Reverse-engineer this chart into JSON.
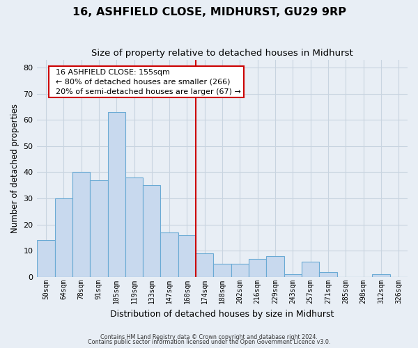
{
  "title": "16, ASHFIELD CLOSE, MIDHURST, GU29 9RP",
  "subtitle": "Size of property relative to detached houses in Midhurst",
  "xlabel": "Distribution of detached houses by size in Midhurst",
  "ylabel": "Number of detached properties",
  "bar_labels": [
    "50sqm",
    "64sqm",
    "78sqm",
    "91sqm",
    "105sqm",
    "119sqm",
    "133sqm",
    "147sqm",
    "160sqm",
    "174sqm",
    "188sqm",
    "202sqm",
    "216sqm",
    "229sqm",
    "243sqm",
    "257sqm",
    "271sqm",
    "285sqm",
    "298sqm",
    "312sqm",
    "326sqm"
  ],
  "bar_values": [
    14,
    30,
    40,
    37,
    63,
    38,
    35,
    17,
    16,
    9,
    5,
    5,
    7,
    8,
    1,
    6,
    2,
    0,
    0,
    1,
    0
  ],
  "bar_color": "#c8d9ee",
  "bar_edgecolor": "#6aaad4",
  "ylim": [
    0,
    83
  ],
  "yticks": [
    0,
    10,
    20,
    30,
    40,
    50,
    60,
    70,
    80
  ],
  "vline_x": 8.5,
  "vline_color": "#cc0000",
  "annotation_title": "16 ASHFIELD CLOSE: 155sqm",
  "annotation_line1": "← 80% of detached houses are smaller (266)",
  "annotation_line2": "20% of semi-detached houses are larger (67) →",
  "annotation_box_facecolor": "#ffffff",
  "annotation_box_edgecolor": "#cc0000",
  "footnote1": "Contains HM Land Registry data © Crown copyright and database right 2024.",
  "footnote2": "Contains public sector information licensed under the Open Government Licence v3.0.",
  "background_color": "#e8eef5",
  "plot_background": "#e8eef5",
  "grid_color": "#c8d4e0"
}
